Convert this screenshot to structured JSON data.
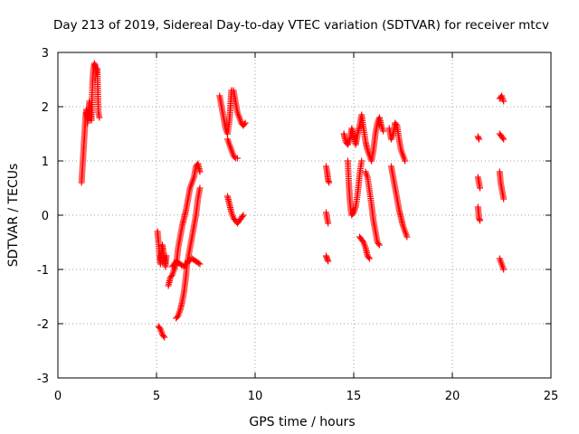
{
  "chart_data": {
    "type": "scatter",
    "title": "Day 213 of 2019, Sidereal Day-to-day VTEC variation (SDTVAR) for receiver mtcv",
    "xlabel": "GPS time / hours",
    "ylabel": "SDTVAR / TECUs",
    "xlim": [
      0,
      25
    ],
    "ylim": [
      -3,
      3
    ],
    "x_ticks": [
      0,
      5,
      10,
      15,
      20,
      25
    ],
    "y_ticks": [
      -3,
      -2,
      -1,
      0,
      1,
      2,
      3
    ],
    "x_tick_labels": [
      "0",
      "5",
      "10",
      "15",
      "20",
      "25"
    ],
    "y_tick_labels": [
      "-3",
      "-2",
      "-1",
      "0",
      "1",
      "2",
      "3"
    ],
    "grid": true,
    "marker": "+",
    "color": "#ff0000",
    "series": [
      {
        "name": "SDTVAR",
        "segments": [
          [
            [
              1.2,
              0.6
            ],
            [
              1.25,
              0.9
            ],
            [
              1.3,
              1.2
            ],
            [
              1.35,
              1.5
            ],
            [
              1.4,
              1.8
            ],
            [
              1.45,
              1.95
            ],
            [
              1.5,
              1.7
            ],
            [
              1.55,
              1.9
            ],
            [
              1.6,
              2.1
            ],
            [
              1.65,
              1.85
            ],
            [
              1.7,
              1.75
            ],
            [
              1.75,
              2.4
            ],
            [
              1.8,
              2.7
            ],
            [
              1.85,
              2.8
            ],
            [
              1.9,
              2.75
            ],
            [
              1.95,
              2.6
            ],
            [
              2.0,
              2.7
            ],
            [
              2.05,
              1.9
            ],
            [
              2.1,
              1.8
            ]
          ],
          [
            [
              5.05,
              -0.3
            ],
            [
              5.1,
              -0.5
            ],
            [
              5.15,
              -0.75
            ],
            [
              5.2,
              -0.9
            ],
            [
              5.25,
              -0.7
            ],
            [
              5.3,
              -0.55
            ],
            [
              5.35,
              -0.7
            ],
            [
              5.4,
              -0.8
            ],
            [
              5.45,
              -0.95
            ],
            [
              5.5,
              -0.75
            ]
          ],
          [
            [
              5.1,
              -2.05
            ],
            [
              5.2,
              -2.1
            ],
            [
              5.3,
              -2.2
            ],
            [
              5.4,
              -2.25
            ]
          ],
          [
            [
              5.6,
              -1.3
            ],
            [
              5.7,
              -1.15
            ],
            [
              5.8,
              -1.1
            ],
            [
              5.9,
              -1.0
            ],
            [
              6.0,
              -0.9
            ],
            [
              6.1,
              -0.6
            ],
            [
              6.2,
              -0.4
            ],
            [
              6.3,
              -0.2
            ],
            [
              6.4,
              -0.05
            ],
            [
              6.5,
              0.1
            ],
            [
              6.6,
              0.3
            ],
            [
              6.7,
              0.5
            ],
            [
              6.8,
              0.6
            ],
            [
              6.9,
              0.7
            ],
            [
              7.0,
              0.9
            ],
            [
              7.1,
              0.95
            ],
            [
              7.2,
              0.8
            ]
          ],
          [
            [
              6.0,
              -1.9
            ],
            [
              6.1,
              -1.85
            ],
            [
              6.2,
              -1.75
            ],
            [
              6.3,
              -1.6
            ],
            [
              6.4,
              -1.4
            ],
            [
              6.5,
              -1.1
            ],
            [
              6.55,
              -0.9
            ],
            [
              6.6,
              -0.8
            ],
            [
              6.7,
              -0.6
            ],
            [
              6.8,
              -0.4
            ],
            [
              6.9,
              -0.2
            ],
            [
              7.0,
              0.0
            ],
            [
              7.1,
              0.3
            ],
            [
              7.2,
              0.5
            ]
          ],
          [
            [
              5.8,
              -0.95
            ],
            [
              6.0,
              -0.85
            ],
            [
              6.2,
              -0.9
            ],
            [
              6.4,
              -0.95
            ],
            [
              6.6,
              -0.85
            ],
            [
              6.8,
              -0.8
            ],
            [
              7.0,
              -0.85
            ],
            [
              7.2,
              -0.9
            ]
          ],
          [
            [
              8.2,
              2.2
            ],
            [
              8.3,
              2.0
            ],
            [
              8.4,
              1.8
            ],
            [
              8.5,
              1.6
            ],
            [
              8.6,
              1.5
            ],
            [
              8.7,
              1.75
            ],
            [
              8.8,
              2.3
            ],
            [
              8.9,
              2.3
            ],
            [
              9.0,
              2.1
            ],
            [
              9.1,
              1.9
            ],
            [
              9.2,
              1.8
            ],
            [
              9.3,
              1.7
            ],
            [
              9.4,
              1.65
            ],
            [
              9.5,
              1.7
            ]
          ],
          [
            [
              8.6,
              1.4
            ],
            [
              8.7,
              1.3
            ],
            [
              8.8,
              1.2
            ],
            [
              8.9,
              1.1
            ],
            [
              9.0,
              1.05
            ],
            [
              9.1,
              1.05
            ]
          ],
          [
            [
              8.6,
              0.35
            ],
            [
              8.7,
              0.2
            ],
            [
              8.8,
              0.05
            ],
            [
              8.9,
              -0.05
            ],
            [
              9.0,
              -0.1
            ],
            [
              9.1,
              -0.15
            ],
            [
              9.2,
              -0.1
            ],
            [
              9.3,
              -0.05
            ],
            [
              9.4,
              0.0
            ]
          ],
          [
            [
              13.6,
              0.9
            ],
            [
              13.65,
              0.8
            ],
            [
              13.7,
              0.65
            ],
            [
              13.75,
              0.6
            ]
          ],
          [
            [
              13.6,
              0.05
            ],
            [
              13.65,
              -0.05
            ],
            [
              13.7,
              -0.15
            ]
          ],
          [
            [
              13.6,
              -0.75
            ],
            [
              13.65,
              -0.8
            ],
            [
              13.7,
              -0.85
            ]
          ],
          [
            [
              14.5,
              1.5
            ],
            [
              14.6,
              1.35
            ],
            [
              14.7,
              1.3
            ],
            [
              14.8,
              1.4
            ],
            [
              14.9,
              1.6
            ],
            [
              15.0,
              1.45
            ],
            [
              15.1,
              1.3
            ],
            [
              15.2,
              1.5
            ],
            [
              15.3,
              1.65
            ],
            [
              15.4,
              1.85
            ],
            [
              15.5,
              1.6
            ],
            [
              15.6,
              1.35
            ],
            [
              15.7,
              1.2
            ],
            [
              15.8,
              1.1
            ],
            [
              15.9,
              1.0
            ],
            [
              16.0,
              1.2
            ],
            [
              16.1,
              1.5
            ],
            [
              16.2,
              1.7
            ],
            [
              16.3,
              1.8
            ],
            [
              16.4,
              1.65
            ],
            [
              16.5,
              1.55
            ]
          ],
          [
            [
              14.7,
              1.0
            ],
            [
              14.75,
              0.6
            ],
            [
              14.8,
              0.3
            ],
            [
              14.85,
              0.1
            ],
            [
              14.9,
              0.0
            ],
            [
              15.0,
              0.05
            ],
            [
              15.1,
              0.15
            ],
            [
              15.2,
              0.4
            ],
            [
              15.3,
              0.75
            ],
            [
              15.4,
              1.0
            ]
          ],
          [
            [
              15.3,
              -0.4
            ],
            [
              15.4,
              -0.45
            ],
            [
              15.5,
              -0.5
            ],
            [
              15.6,
              -0.6
            ],
            [
              15.7,
              -0.75
            ],
            [
              15.8,
              -0.8
            ]
          ],
          [
            [
              15.6,
              0.8
            ],
            [
              15.7,
              0.7
            ],
            [
              15.8,
              0.45
            ],
            [
              15.9,
              0.2
            ],
            [
              16.0,
              -0.1
            ],
            [
              16.1,
              -0.3
            ],
            [
              16.2,
              -0.5
            ],
            [
              16.3,
              -0.55
            ]
          ],
          [
            [
              16.8,
              1.6
            ],
            [
              16.9,
              1.4
            ],
            [
              17.0,
              1.5
            ],
            [
              17.1,
              1.7
            ],
            [
              17.2,
              1.65
            ],
            [
              17.3,
              1.4
            ],
            [
              17.4,
              1.2
            ],
            [
              17.5,
              1.1
            ],
            [
              17.6,
              1.0
            ]
          ],
          [
            [
              16.9,
              0.9
            ],
            [
              17.0,
              0.7
            ],
            [
              17.1,
              0.5
            ],
            [
              17.2,
              0.3
            ],
            [
              17.3,
              0.1
            ],
            [
              17.4,
              -0.05
            ],
            [
              17.5,
              -0.2
            ],
            [
              17.6,
              -0.3
            ],
            [
              17.7,
              -0.4
            ]
          ],
          [
            [
              21.3,
              1.45
            ],
            [
              21.35,
              1.4
            ]
          ],
          [
            [
              21.3,
              0.7
            ],
            [
              21.35,
              0.6
            ],
            [
              21.4,
              0.5
            ]
          ],
          [
            [
              21.3,
              0.15
            ],
            [
              21.35,
              -0.05
            ],
            [
              21.4,
              -0.1
            ]
          ],
          [
            [
              22.4,
              2.15
            ],
            [
              22.5,
              2.2
            ],
            [
              22.6,
              2.1
            ]
          ],
          [
            [
              22.4,
              1.5
            ],
            [
              22.5,
              1.45
            ],
            [
              22.6,
              1.4
            ]
          ],
          [
            [
              22.4,
              0.8
            ],
            [
              22.45,
              0.6
            ],
            [
              22.5,
              0.5
            ],
            [
              22.55,
              0.4
            ],
            [
              22.6,
              0.3
            ]
          ],
          [
            [
              22.4,
              -0.8
            ],
            [
              22.5,
              -0.9
            ],
            [
              22.6,
              -1.0
            ]
          ]
        ]
      }
    ]
  }
}
